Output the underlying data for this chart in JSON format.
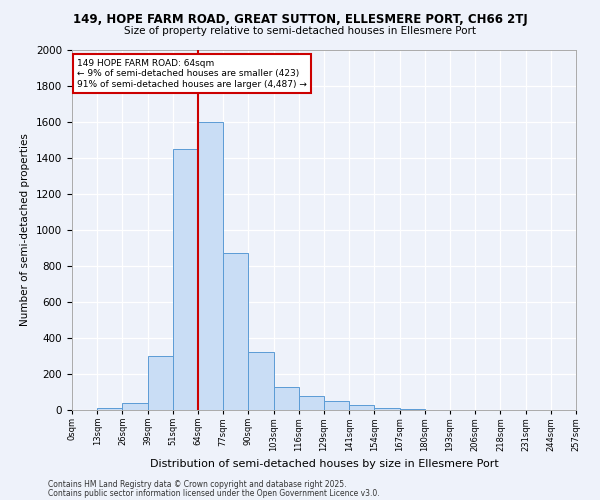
{
  "title1": "149, HOPE FARM ROAD, GREAT SUTTON, ELLESMERE PORT, CH66 2TJ",
  "title2": "Size of property relative to semi-detached houses in Ellesmere Port",
  "xlabel": "Distribution of semi-detached houses by size in Ellesmere Port",
  "ylabel": "Number of semi-detached properties",
  "footer1": "Contains HM Land Registry data © Crown copyright and database right 2025.",
  "footer2": "Contains public sector information licensed under the Open Government Licence v3.0.",
  "annotation_title": "149 HOPE FARM ROAD: 64sqm",
  "annotation_line1": "← 9% of semi-detached houses are smaller (423)",
  "annotation_line2": "91% of semi-detached houses are larger (4,487) →",
  "red_line_x": 5,
  "bar_values": [
    2,
    10,
    40,
    300,
    1450,
    1600,
    870,
    320,
    130,
    80,
    50,
    30,
    10,
    5,
    2,
    0,
    0,
    0,
    0,
    0
  ],
  "x_labels": [
    "0sqm",
    "13sqm",
    "26sqm",
    "39sqm",
    "51sqm",
    "64sqm",
    "77sqm",
    "90sqm",
    "103sqm",
    "116sqm",
    "129sqm",
    "141sqm",
    "154sqm",
    "167sqm",
    "180sqm",
    "193sqm",
    "206sqm",
    "218sqm",
    "231sqm",
    "244sqm",
    "257sqm"
  ],
  "bar_color": "#c9ddf5",
  "bar_edge_color": "#5b9bd5",
  "red_line_color": "#cc0000",
  "background_color": "#eef2fa",
  "grid_color": "#d0d8e8",
  "ylim": [
    0,
    2000
  ],
  "yticks": [
    0,
    200,
    400,
    600,
    800,
    1000,
    1200,
    1400,
    1600,
    1800,
    2000
  ],
  "annotation_box_color": "#ffffff",
  "annotation_box_edge": "#cc0000"
}
